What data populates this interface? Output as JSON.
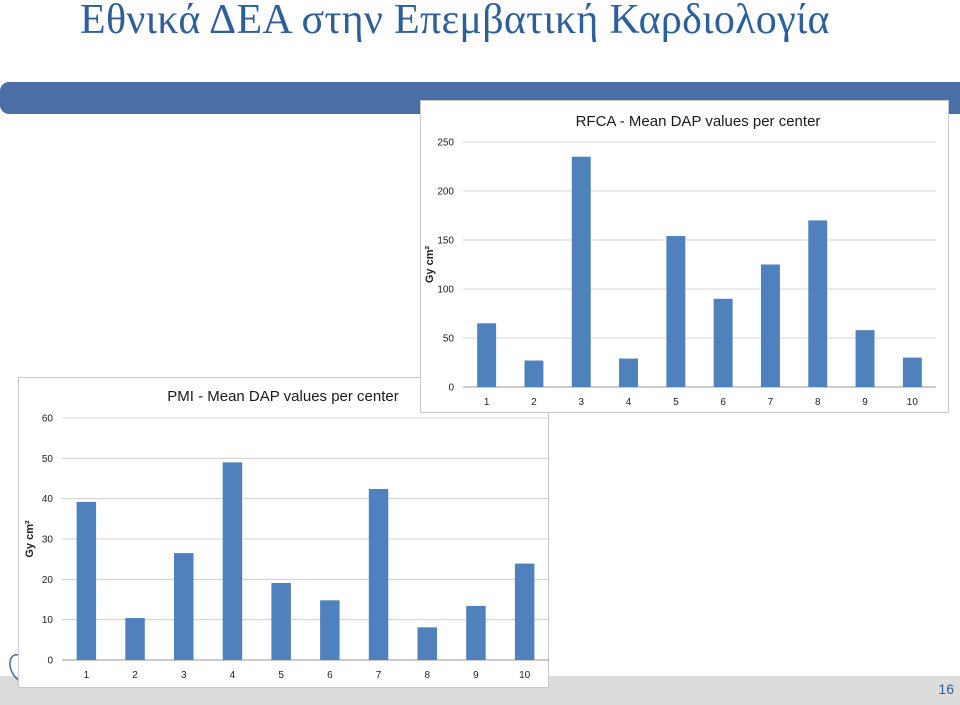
{
  "slide": {
    "title": "Εθνικά ΔΕΑ στην Επεμβατική Καρδιολογία",
    "page_number": "16"
  },
  "colors": {
    "accent": "#4a6fa5",
    "bar": "#4f81bd",
    "title": "#2d5f9a",
    "footer": "#dcdcdc"
  },
  "chart_data": [
    {
      "id": "rfca",
      "type": "bar",
      "title": "RFCA - Mean DAP values per center",
      "xlabel": "",
      "ylabel": "Gy cm²",
      "categories": [
        "1",
        "2",
        "3",
        "4",
        "5",
        "6",
        "7",
        "8",
        "9",
        "10"
      ],
      "values": [
        65,
        27,
        235,
        29,
        154,
        90,
        125,
        170,
        58,
        30
      ],
      "ylim": [
        0,
        250
      ],
      "yticks": [
        0,
        50,
        100,
        150,
        200,
        250
      ],
      "grid": true,
      "legend": "none"
    },
    {
      "id": "pmi",
      "type": "bar",
      "title": "PMI - Mean DAP values per center",
      "xlabel": "",
      "ylabel": "Gy cm²",
      "categories": [
        "1",
        "2",
        "3",
        "4",
        "5",
        "6",
        "7",
        "8",
        "9",
        "10"
      ],
      "values": [
        39.2,
        10.4,
        26.5,
        49,
        19.1,
        14.8,
        42.4,
        8.1,
        13.4,
        23.9
      ],
      "ylim": [
        0,
        60
      ],
      "yticks": [
        0,
        10,
        20,
        30,
        40,
        50,
        60
      ],
      "grid": true,
      "legend": "none"
    }
  ]
}
